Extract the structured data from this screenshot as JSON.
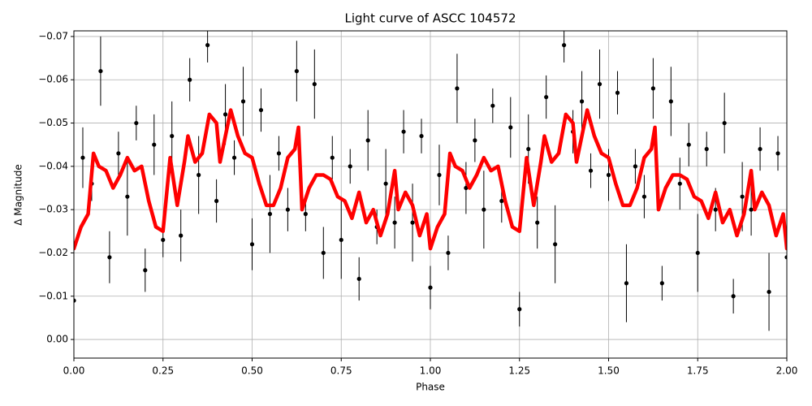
{
  "chart_data": {
    "type": "errorbar",
    "title": "Light curve of ASCC 104572",
    "xlabel": "Phase",
    "ylabel": "Δ Magnitude",
    "xlim": [
      0,
      2
    ],
    "ylim": [
      0.0043,
      -0.0713
    ],
    "xticks": [
      {
        "value": 0,
        "label": "0.00"
      },
      0.25,
      {
        "value": 0.5,
        "label": "0.50"
      },
      0.75,
      {
        "value": 1,
        "label": "1.00"
      },
      1.25,
      {
        "value": 1.5,
        "label": "1.50"
      },
      1.75,
      {
        "value": 2,
        "label": "2.00"
      }
    ],
    "yticks": [
      {
        "value": 0,
        "label": "0.00"
      },
      {
        "value": -0.01,
        "label": "−0.01"
      },
      {
        "value": -0.02,
        "label": "−0.02"
      },
      {
        "value": -0.03,
        "label": "−0.03"
      },
      {
        "value": -0.04,
        "label": "−0.04"
      },
      {
        "value": -0.05,
        "label": "−0.05"
      },
      {
        "value": -0.06,
        "label": "−0.06"
      },
      {
        "value": -0.07,
        "label": "−0.07"
      }
    ],
    "grid": true,
    "points": {
      "color": "#000000",
      "x": [
        0,
        0.025,
        0.05,
        0.075,
        0.1,
        0.125,
        0.15,
        0.175,
        0.2,
        0.225,
        0.25,
        0.275,
        0.3,
        0.325,
        0.35,
        0.375,
        0.4,
        0.425,
        0.45,
        0.475,
        0.5,
        0.525,
        0.55,
        0.575,
        0.6,
        0.625,
        0.65,
        0.675,
        0.7,
        0.725,
        0.75,
        0.775,
        0.8,
        0.825,
        0.85,
        0.875,
        0.9,
        0.925,
        0.95,
        0.975,
        1,
        1.025,
        1.05,
        1.075,
        1.1,
        1.125,
        1.15,
        1.175,
        1.2,
        1.225,
        1.25,
        1.275,
        1.3,
        1.325,
        1.35,
        1.375,
        1.4,
        1.425,
        1.45,
        1.475,
        1.5,
        1.525,
        1.55,
        1.575,
        1.6,
        1.625,
        1.65,
        1.675,
        1.7,
        1.725,
        1.75,
        1.775,
        1.8,
        1.825,
        1.85,
        1.875,
        1.9,
        1.925,
        1.95,
        1.975,
        2
      ],
      "values": [
        -0.009,
        -0.042,
        -0.036,
        -0.062,
        -0.019,
        -0.043,
        -0.033,
        -0.05,
        -0.016,
        -0.045,
        -0.023,
        -0.047,
        -0.024,
        -0.06,
        -0.038,
        -0.068,
        -0.032,
        -0.052,
        -0.042,
        -0.055,
        -0.022,
        -0.053,
        -0.029,
        -0.043,
        -0.03,
        -0.062,
        -0.029,
        -0.059,
        -0.02,
        -0.042,
        -0.023,
        -0.04,
        -0.014,
        -0.046,
        -0.026,
        -0.036,
        -0.027,
        -0.048,
        -0.027,
        -0.047,
        -0.012,
        -0.038,
        -0.02,
        -0.058,
        -0.035,
        -0.046,
        -0.03,
        -0.054,
        -0.032,
        -0.049,
        -0.007,
        -0.044,
        -0.027,
        -0.056,
        -0.022,
        -0.068,
        -0.048,
        -0.055,
        -0.039,
        -0.059,
        -0.038,
        -0.057,
        -0.013,
        -0.04,
        -0.033,
        -0.058,
        -0.013,
        -0.055,
        -0.036,
        -0.045,
        -0.02,
        -0.044,
        -0.03,
        -0.05,
        -0.01,
        -0.033,
        -0.03,
        -0.044,
        -0.011,
        -0.043,
        -0.019
      ],
      "errors": [
        0.005,
        0.007,
        0.004,
        0.008,
        0.006,
        0.005,
        0.009,
        0.004,
        0.005,
        0.007,
        0.004,
        0.008,
        0.006,
        0.005,
        0.009,
        0.004,
        0.005,
        0.007,
        0.004,
        0.008,
        0.006,
        0.005,
        0.009,
        0.004,
        0.005,
        0.007,
        0.004,
        0.008,
        0.006,
        0.005,
        0.009,
        0.004,
        0.005,
        0.007,
        0.004,
        0.008,
        0.006,
        0.005,
        0.009,
        0.004,
        0.005,
        0.007,
        0.004,
        0.008,
        0.006,
        0.005,
        0.009,
        0.004,
        0.005,
        0.007,
        0.004,
        0.008,
        0.006,
        0.005,
        0.009,
        0.004,
        0.005,
        0.007,
        0.004,
        0.008,
        0.006,
        0.005,
        0.009,
        0.004,
        0.005,
        0.007,
        0.004,
        0.008,
        0.006,
        0.005,
        0.009,
        0.004,
        0.005,
        0.007,
        0.004,
        0.008,
        0.006,
        0.005,
        0.009,
        0.004,
        0.005
      ]
    },
    "curve": {
      "color": "#ff0000",
      "x": [
        0,
        0.02,
        0.04,
        0.055,
        0.07,
        0.09,
        0.11,
        0.13,
        0.15,
        0.17,
        0.19,
        0.21,
        0.23,
        0.25,
        0.27,
        0.29,
        0.31,
        0.32,
        0.34,
        0.36,
        0.38,
        0.4,
        0.41,
        0.44,
        0.46,
        0.48,
        0.5,
        0.52,
        0.54,
        0.56,
        0.58,
        0.6,
        0.62,
        0.63,
        0.64,
        0.66,
        0.68,
        0.7,
        0.72,
        0.74,
        0.76,
        0.78,
        0.8,
        0.82,
        0.84,
        0.86,
        0.88,
        0.9,
        0.91,
        0.93,
        0.95,
        0.97,
        0.99,
        1,
        1.02,
        1.04,
        1.055,
        1.07,
        1.09,
        1.11,
        1.13,
        1.15,
        1.17,
        1.19,
        1.21,
        1.23,
        1.25,
        1.27,
        1.29,
        1.31,
        1.32,
        1.34,
        1.36,
        1.38,
        1.4,
        1.41,
        1.44,
        1.46,
        1.48,
        1.5,
        1.52,
        1.54,
        1.56,
        1.58,
        1.6,
        1.62,
        1.63,
        1.64,
        1.66,
        1.68,
        1.7,
        1.72,
        1.74,
        1.76,
        1.78,
        1.8,
        1.82,
        1.84,
        1.86,
        1.88,
        1.9,
        1.91,
        1.93,
        1.95,
        1.97,
        1.99,
        2
      ],
      "values": [
        -0.021,
        -0.026,
        -0.029,
        -0.043,
        -0.04,
        -0.039,
        -0.035,
        -0.038,
        -0.042,
        -0.039,
        -0.04,
        -0.032,
        -0.026,
        -0.025,
        -0.042,
        -0.031,
        -0.041,
        -0.047,
        -0.041,
        -0.043,
        -0.052,
        -0.05,
        -0.041,
        -0.053,
        -0.047,
        -0.043,
        -0.042,
        -0.036,
        -0.031,
        -0.031,
        -0.035,
        -0.042,
        -0.044,
        -0.049,
        -0.03,
        -0.035,
        -0.038,
        -0.038,
        -0.037,
        -0.033,
        -0.032,
        -0.028,
        -0.034,
        -0.027,
        -0.03,
        -0.024,
        -0.029,
        -0.039,
        -0.03,
        -0.034,
        -0.031,
        -0.024,
        -0.029,
        -0.021,
        -0.026,
        -0.029,
        -0.043,
        -0.04,
        -0.039,
        -0.035,
        -0.038,
        -0.042,
        -0.039,
        -0.04,
        -0.032,
        -0.026,
        -0.025,
        -0.042,
        -0.031,
        -0.041,
        -0.047,
        -0.041,
        -0.043,
        -0.052,
        -0.05,
        -0.041,
        -0.053,
        -0.047,
        -0.043,
        -0.042,
        -0.036,
        -0.031,
        -0.031,
        -0.035,
        -0.042,
        -0.044,
        -0.049,
        -0.03,
        -0.035,
        -0.038,
        -0.038,
        -0.037,
        -0.033,
        -0.032,
        -0.028,
        -0.034,
        -0.027,
        -0.03,
        -0.024,
        -0.029,
        -0.039,
        -0.03,
        -0.034,
        -0.031,
        -0.024,
        -0.029,
        -0.021
      ]
    }
  }
}
